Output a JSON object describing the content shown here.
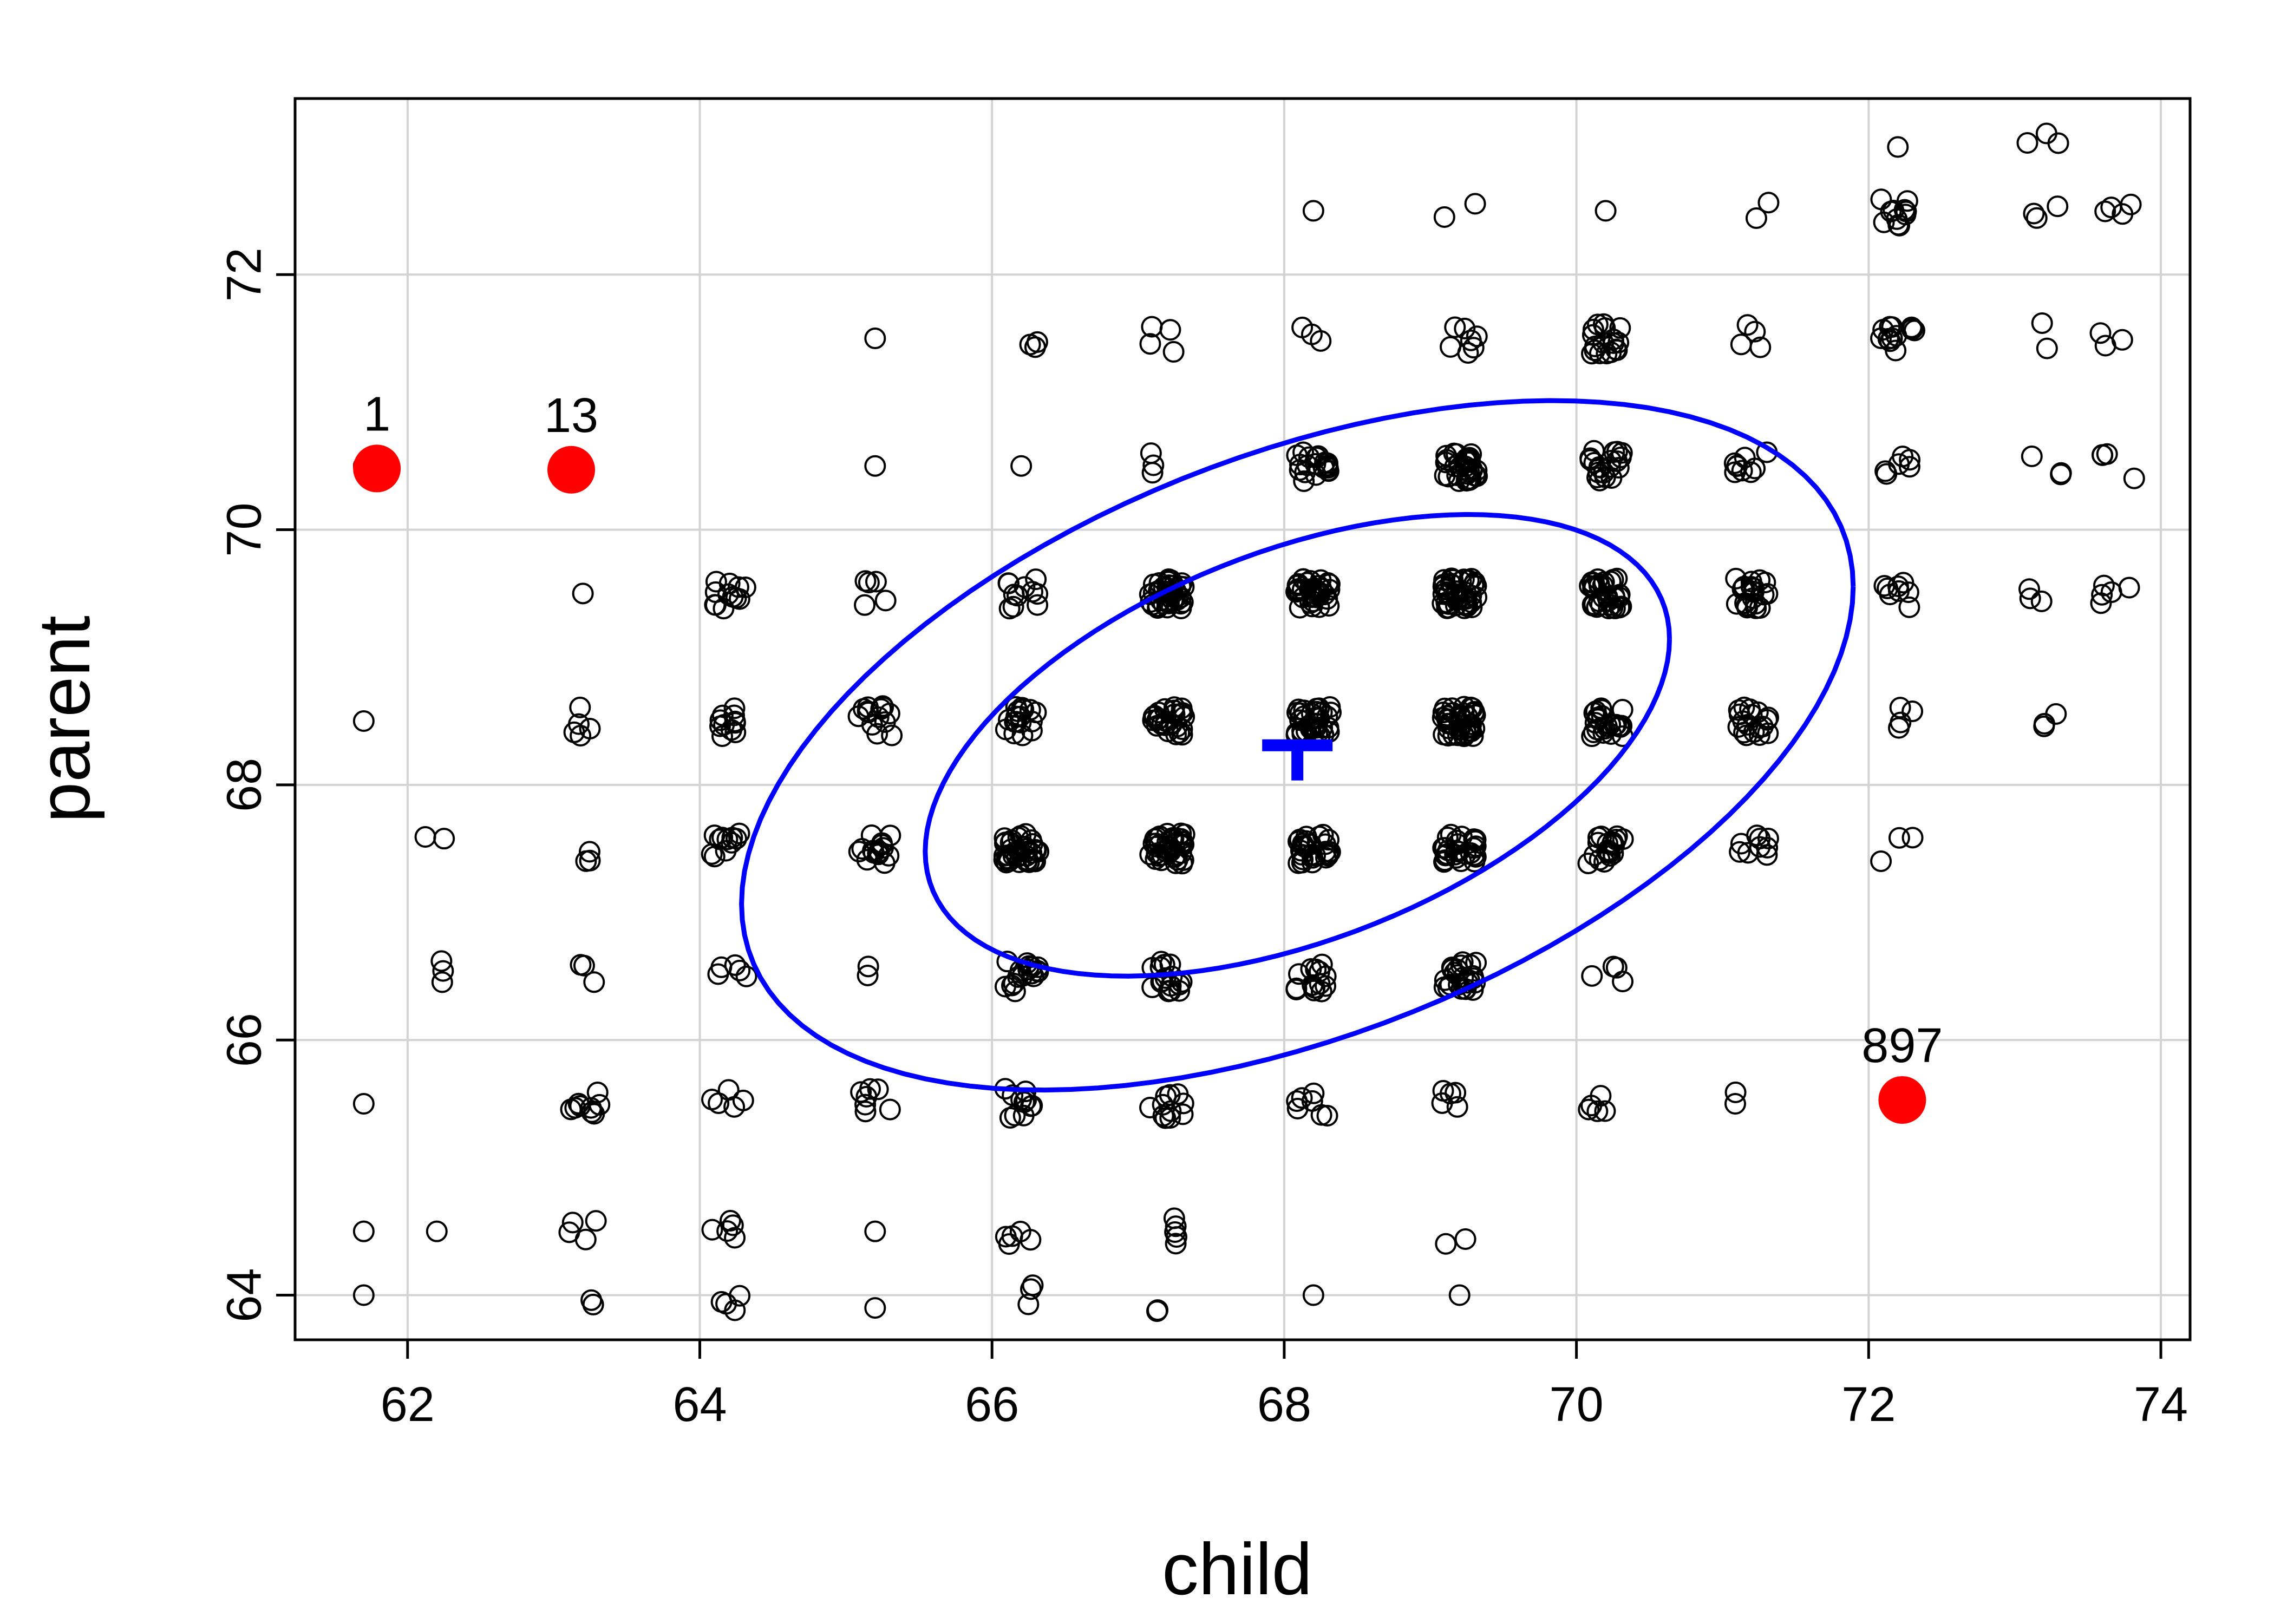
{
  "chart_data": {
    "type": "scatter",
    "title": "",
    "xlabel": "child",
    "ylabel": "parent",
    "xlim": [
      61.23,
      74.2
    ],
    "ylim": [
      63.65,
      73.38
    ],
    "x_ticks": [
      62,
      64,
      66,
      68,
      70,
      72,
      74
    ],
    "y_ticks": [
      64,
      66,
      68,
      70,
      72
    ],
    "grid": true,
    "colors": {
      "points": "#000000",
      "ellipse": "#0000ff",
      "highlight": "#ff0000",
      "grid": "#d3d3d3"
    },
    "jitter": 0.12,
    "point_groups": [
      {
        "x": 61.7,
        "y": 64.0,
        "n": 1
      },
      {
        "x": 61.7,
        "y": 64.5,
        "n": 1
      },
      {
        "x": 61.7,
        "y": 65.5,
        "n": 1
      },
      {
        "x": 61.7,
        "y": 68.5,
        "n": 1
      },
      {
        "x": 61.7,
        "y": 70.5,
        "n": 1
      },
      {
        "x": 62.2,
        "y": 64.5,
        "n": 1
      },
      {
        "x": 62.2,
        "y": 66.5,
        "n": 3
      },
      {
        "x": 62.2,
        "y": 67.5,
        "n": 2
      },
      {
        "x": 63.2,
        "y": 64.0,
        "n": 2
      },
      {
        "x": 63.2,
        "y": 64.5,
        "n": 4
      },
      {
        "x": 63.2,
        "y": 65.5,
        "n": 9
      },
      {
        "x": 63.2,
        "y": 66.5,
        "n": 3
      },
      {
        "x": 63.2,
        "y": 67.5,
        "n": 3
      },
      {
        "x": 63.2,
        "y": 68.5,
        "n": 5
      },
      {
        "x": 63.2,
        "y": 69.5,
        "n": 1
      },
      {
        "x": 63.2,
        "y": 70.5,
        "n": 1
      },
      {
        "x": 64.2,
        "y": 64.0,
        "n": 4
      },
      {
        "x": 64.2,
        "y": 64.5,
        "n": 5
      },
      {
        "x": 64.2,
        "y": 65.5,
        "n": 5
      },
      {
        "x": 64.2,
        "y": 66.5,
        "n": 5
      },
      {
        "x": 64.2,
        "y": 67.5,
        "n": 11
      },
      {
        "x": 64.2,
        "y": 68.5,
        "n": 11
      },
      {
        "x": 64.2,
        "y": 69.5,
        "n": 12
      },
      {
        "x": 65.2,
        "y": 63.9,
        "n": 1
      },
      {
        "x": 65.2,
        "y": 64.5,
        "n": 1
      },
      {
        "x": 65.2,
        "y": 65.5,
        "n": 7
      },
      {
        "x": 65.2,
        "y": 66.5,
        "n": 2
      },
      {
        "x": 65.2,
        "y": 67.5,
        "n": 15
      },
      {
        "x": 65.2,
        "y": 68.5,
        "n": 14
      },
      {
        "x": 65.2,
        "y": 69.5,
        "n": 5
      },
      {
        "x": 65.2,
        "y": 70.5,
        "n": 1
      },
      {
        "x": 65.2,
        "y": 71.5,
        "n": 1
      },
      {
        "x": 66.2,
        "y": 64.0,
        "n": 3
      },
      {
        "x": 66.2,
        "y": 64.5,
        "n": 5
      },
      {
        "x": 66.2,
        "y": 65.5,
        "n": 11
      },
      {
        "x": 66.2,
        "y": 66.5,
        "n": 17
      },
      {
        "x": 66.2,
        "y": 67.5,
        "n": 36
      },
      {
        "x": 66.2,
        "y": 68.5,
        "n": 17
      },
      {
        "x": 66.2,
        "y": 69.5,
        "n": 11
      },
      {
        "x": 66.2,
        "y": 70.5,
        "n": 1
      },
      {
        "x": 66.2,
        "y": 71.5,
        "n": 3
      },
      {
        "x": 67.2,
        "y": 63.9,
        "n": 2
      },
      {
        "x": 67.2,
        "y": 64.5,
        "n": 5
      },
      {
        "x": 67.2,
        "y": 65.5,
        "n": 11
      },
      {
        "x": 67.2,
        "y": 66.5,
        "n": 17
      },
      {
        "x": 67.2,
        "y": 67.5,
        "n": 38
      },
      {
        "x": 67.2,
        "y": 68.5,
        "n": 28
      },
      {
        "x": 67.2,
        "y": 69.5,
        "n": 38
      },
      {
        "x": 67.2,
        "y": 70.5,
        "n": 3
      },
      {
        "x": 67.2,
        "y": 71.5,
        "n": 4
      },
      {
        "x": 68.2,
        "y": 64.0,
        "n": 1
      },
      {
        "x": 68.2,
        "y": 65.5,
        "n": 7
      },
      {
        "x": 68.2,
        "y": 66.5,
        "n": 14
      },
      {
        "x": 68.2,
        "y": 67.5,
        "n": 28
      },
      {
        "x": 68.2,
        "y": 68.5,
        "n": 34
      },
      {
        "x": 68.2,
        "y": 69.5,
        "n": 38
      },
      {
        "x": 68.2,
        "y": 70.5,
        "n": 19
      },
      {
        "x": 68.2,
        "y": 71.5,
        "n": 3
      },
      {
        "x": 68.2,
        "y": 72.5,
        "n": 1
      },
      {
        "x": 69.2,
        "y": 64.0,
        "n": 1
      },
      {
        "x": 69.2,
        "y": 64.5,
        "n": 2
      },
      {
        "x": 69.2,
        "y": 65.5,
        "n": 5
      },
      {
        "x": 69.2,
        "y": 66.5,
        "n": 25
      },
      {
        "x": 69.2,
        "y": 67.5,
        "n": 27
      },
      {
        "x": 69.2,
        "y": 68.5,
        "n": 43
      },
      {
        "x": 69.2,
        "y": 69.5,
        "n": 48
      },
      {
        "x": 69.2,
        "y": 70.5,
        "n": 33
      },
      {
        "x": 69.2,
        "y": 71.5,
        "n": 7
      },
      {
        "x": 69.2,
        "y": 72.5,
        "n": 2
      },
      {
        "x": 70.2,
        "y": 65.5,
        "n": 5
      },
      {
        "x": 70.2,
        "y": 66.5,
        "n": 4
      },
      {
        "x": 70.2,
        "y": 67.5,
        "n": 20
      },
      {
        "x": 70.2,
        "y": 68.5,
        "n": 24
      },
      {
        "x": 70.2,
        "y": 69.5,
        "n": 33
      },
      {
        "x": 70.2,
        "y": 70.5,
        "n": 20
      },
      {
        "x": 70.2,
        "y": 71.5,
        "n": 18
      },
      {
        "x": 70.2,
        "y": 72.5,
        "n": 1
      },
      {
        "x": 71.2,
        "y": 65.5,
        "n": 2
      },
      {
        "x": 71.2,
        "y": 67.5,
        "n": 9
      },
      {
        "x": 71.2,
        "y": 68.5,
        "n": 18
      },
      {
        "x": 71.2,
        "y": 69.5,
        "n": 22
      },
      {
        "x": 71.2,
        "y": 70.5,
        "n": 9
      },
      {
        "x": 71.2,
        "y": 71.5,
        "n": 4
      },
      {
        "x": 71.2,
        "y": 72.5,
        "n": 2
      },
      {
        "x": 72.2,
        "y": 65.5,
        "n": 1
      },
      {
        "x": 72.2,
        "y": 67.5,
        "n": 3
      },
      {
        "x": 72.2,
        "y": 68.5,
        "n": 4
      },
      {
        "x": 72.2,
        "y": 69.5,
        "n": 8
      },
      {
        "x": 72.2,
        "y": 70.5,
        "n": 6
      },
      {
        "x": 72.2,
        "y": 71.5,
        "n": 13
      },
      {
        "x": 72.2,
        "y": 72.5,
        "n": 11
      },
      {
        "x": 72.2,
        "y": 73.0,
        "n": 1
      },
      {
        "x": 73.2,
        "y": 68.5,
        "n": 3
      },
      {
        "x": 73.2,
        "y": 69.5,
        "n": 3
      },
      {
        "x": 73.2,
        "y": 70.5,
        "n": 3
      },
      {
        "x": 73.2,
        "y": 71.5,
        "n": 2
      },
      {
        "x": 73.2,
        "y": 72.5,
        "n": 3
      },
      {
        "x": 73.2,
        "y": 73.0,
        "n": 3
      },
      {
        "x": 73.7,
        "y": 69.5,
        "n": 5
      },
      {
        "x": 73.7,
        "y": 70.5,
        "n": 4
      },
      {
        "x": 73.7,
        "y": 71.5,
        "n": 3
      },
      {
        "x": 73.7,
        "y": 72.5,
        "n": 4
      }
    ],
    "highlighted_points": [
      {
        "label": "1",
        "x": 61.79,
        "y": 70.48
      },
      {
        "label": "13",
        "x": 63.12,
        "y": 70.47
      },
      {
        "label": "897",
        "x": 72.23,
        "y": 65.53
      }
    ],
    "center": {
      "x": 68.09,
      "y": 68.31
    },
    "ellipses": [
      {
        "cx": 68.09,
        "cy": 68.31,
        "rx": 2.52,
        "ry": 1.79,
        "r": 0.46,
        "level": 0.4
      },
      {
        "cx": 68.09,
        "cy": 68.31,
        "rx": 2.52,
        "ry": 1.79,
        "r": 0.46,
        "level": 0.68
      }
    ]
  }
}
